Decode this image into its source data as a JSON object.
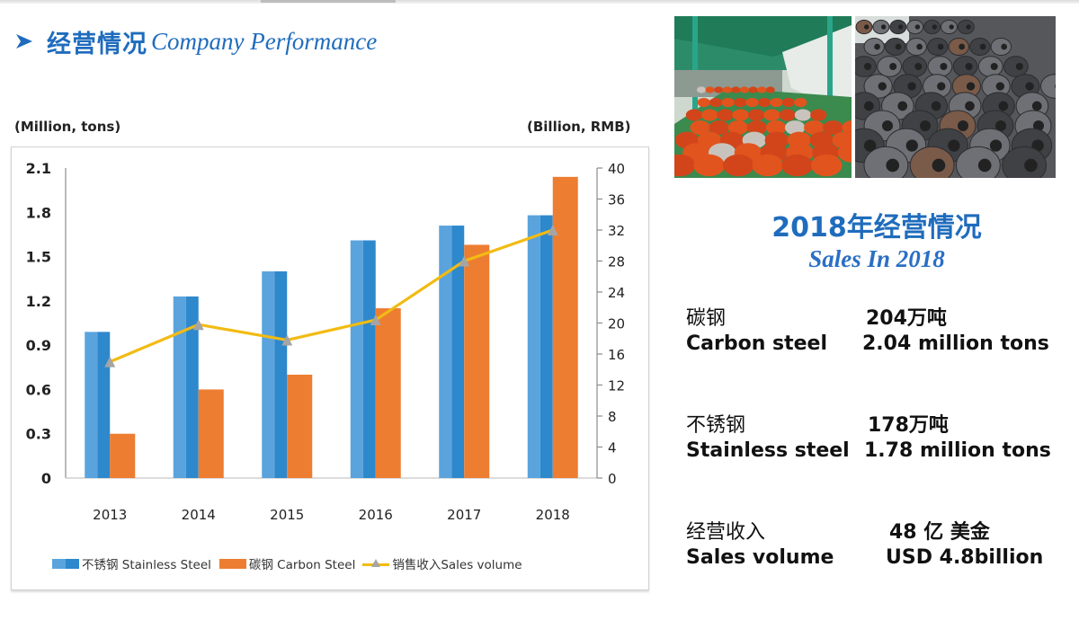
{
  "header": {
    "title_cn": "经营情况",
    "title_en": "Company Performance",
    "bullet_icon": "arrow-right-icon"
  },
  "chart_units": {
    "left": "(Million, tons)",
    "right": "(Billion, RMB)"
  },
  "colors": {
    "accent_blue": "#1f6cbd",
    "stainless_light": "#5aa3dd",
    "stainless_dark": "#2e88cc",
    "carbon": "#ed7d31",
    "line": "#f2bb13",
    "marker": "#a5a5a5"
  },
  "chart_data": {
    "type": "bar",
    "title": "",
    "categories": [
      "2013",
      "2014",
      "2015",
      "2016",
      "2017",
      "2018"
    ],
    "series": [
      {
        "name": "不锈钢 Stainless Steel",
        "type": "bar",
        "axis": "left",
        "values": [
          0.99,
          1.23,
          1.4,
          1.61,
          1.71,
          1.78
        ]
      },
      {
        "name": "碳钢 Carbon Steel",
        "type": "bar",
        "axis": "left",
        "values": [
          0.3,
          0.6,
          0.7,
          1.15,
          1.58,
          2.04
        ]
      },
      {
        "name": "销售收入Sales volume",
        "type": "line",
        "axis": "right",
        "marker": "triangle",
        "values": [
          15.0,
          19.8,
          17.8,
          20.4,
          28.0,
          32.0
        ]
      }
    ],
    "ylabel_left": "(Million, tons)",
    "ylabel_right": "(Billion, RMB)",
    "ylim_left": [
      0,
      2.1
    ],
    "yticks_left": [
      "0",
      "0.3",
      "0.6",
      "0.9",
      "1.2",
      "1.5",
      "1.8",
      "2.1"
    ],
    "ylim_right": [
      0,
      40
    ],
    "yticks_right": [
      "0",
      "4",
      "8",
      "12",
      "16",
      "20",
      "24",
      "28",
      "32",
      "36",
      "40"
    ],
    "grid": false,
    "legend_position": "bottom",
    "legend": [
      "不锈钢 Stainless Steel",
      "碳钢 Carbon Steel",
      "销售收入Sales volume"
    ]
  },
  "photos": [
    {
      "name": "warehouse-steel-coils-photo",
      "description": "orange steel coils in green warehouse"
    },
    {
      "name": "carbon-steel-coils-photo",
      "description": "dark gray carbon steel coils"
    }
  ],
  "sales": {
    "title_cn": "2018年经营情况",
    "title_en": "Sales In 2018",
    "items": [
      {
        "cn_label": "碳钢",
        "cn_value": "204万吨",
        "en_label": "Carbon steel",
        "en_value": "2.04 million  tons"
      },
      {
        "cn_label": "不锈钢",
        "cn_value": "178万吨",
        "en_label": "Stainless steel",
        "en_value": "1.78 million  tons"
      },
      {
        "cn_label": "经营收入",
        "cn_value": "48 亿 美金",
        "en_label": "Sales volume",
        "en_value": "USD 4.8billion"
      }
    ]
  }
}
